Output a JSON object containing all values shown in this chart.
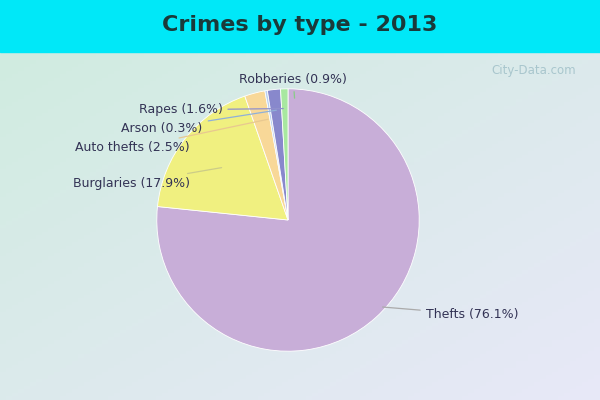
{
  "title": "Crimes by type - 2013",
  "slices": [
    {
      "label": "Thefts (76.1%)",
      "value": 76.1,
      "color": "#c8aed8"
    },
    {
      "label": "Burglaries (17.9%)",
      "value": 17.9,
      "color": "#f0f080"
    },
    {
      "label": "Auto thefts (2.5%)",
      "value": 2.5,
      "color": "#f8d898"
    },
    {
      "label": "Arson (0.3%)",
      "value": 0.3,
      "color": "#b8d0f0"
    },
    {
      "label": "Rapes (1.6%)",
      "value": 1.6,
      "color": "#8888cc"
    },
    {
      "label": "Robberies (0.9%)",
      "value": 0.9,
      "color": "#a8e8a0"
    }
  ],
  "bg_color_top": "#00e8f8",
  "bg_color_main_tl": "#d0ece0",
  "bg_color_main_br": "#e8e8f8",
  "title_fontsize": 16,
  "label_fontsize": 9,
  "startangle": 90,
  "border_color": "#00d8e8",
  "label_color": "#333355",
  "watermark": "City-Data.com"
}
